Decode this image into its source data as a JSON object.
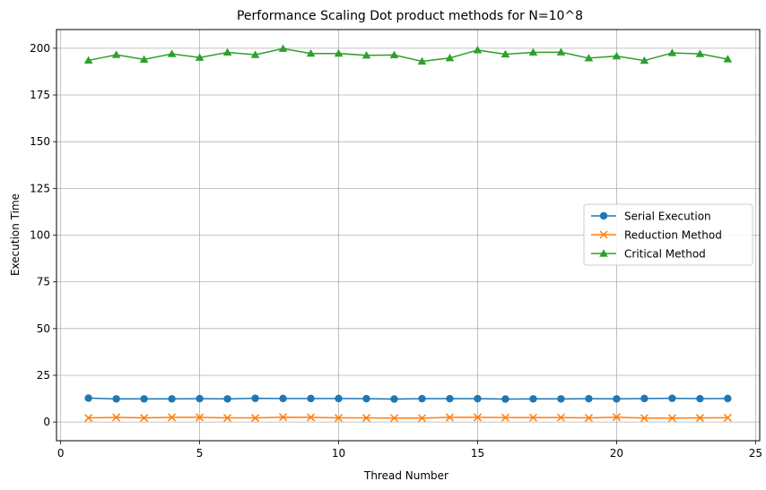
{
  "chart_data": {
    "type": "line",
    "title": "Performance Scaling Dot product methods for N=10^8",
    "xlabel": "Thread Number",
    "ylabel": "Execution Time",
    "xlim": [
      -0.15,
      25.15
    ],
    "ylim": [
      -10,
      210
    ],
    "xticks": [
      0,
      5,
      10,
      15,
      20,
      25
    ],
    "yticks": [
      0,
      25,
      50,
      75,
      100,
      125,
      150,
      175,
      200
    ],
    "grid": true,
    "legend_position": "center-right",
    "x": [
      1,
      2,
      3,
      4,
      5,
      6,
      7,
      8,
      9,
      10,
      11,
      12,
      13,
      14,
      15,
      16,
      17,
      18,
      19,
      20,
      21,
      22,
      23,
      24
    ],
    "series": [
      {
        "name": "Serial Execution",
        "color": "#1f77b4",
        "marker": "circle",
        "values": [
          12.8,
          12.4,
          12.4,
          12.4,
          12.5,
          12.4,
          12.7,
          12.6,
          12.6,
          12.6,
          12.5,
          12.3,
          12.5,
          12.5,
          12.5,
          12.3,
          12.4,
          12.4,
          12.5,
          12.4,
          12.6,
          12.7,
          12.5,
          12.6
        ]
      },
      {
        "name": "Reduction Method",
        "color": "#ff7f0e",
        "marker": "x",
        "values": [
          2.2,
          2.5,
          2.2,
          2.5,
          2.5,
          2.2,
          2.2,
          2.6,
          2.5,
          2.2,
          2.2,
          2.1,
          2.1,
          2.5,
          2.5,
          2.4,
          2.4,
          2.4,
          2.2,
          2.6,
          2.1,
          2.1,
          2.2,
          2.3
        ]
      },
      {
        "name": "Critical Method",
        "color": "#2ca02c",
        "marker": "triangle",
        "values": [
          193.5,
          196.5,
          194.0,
          197.0,
          195.0,
          197.8,
          196.5,
          199.8,
          197.2,
          197.2,
          196.2,
          196.4,
          193.0,
          194.8,
          199.0,
          196.8,
          197.8,
          197.9,
          194.7,
          195.8,
          193.4,
          197.5,
          197.0,
          194.2
        ]
      }
    ]
  }
}
